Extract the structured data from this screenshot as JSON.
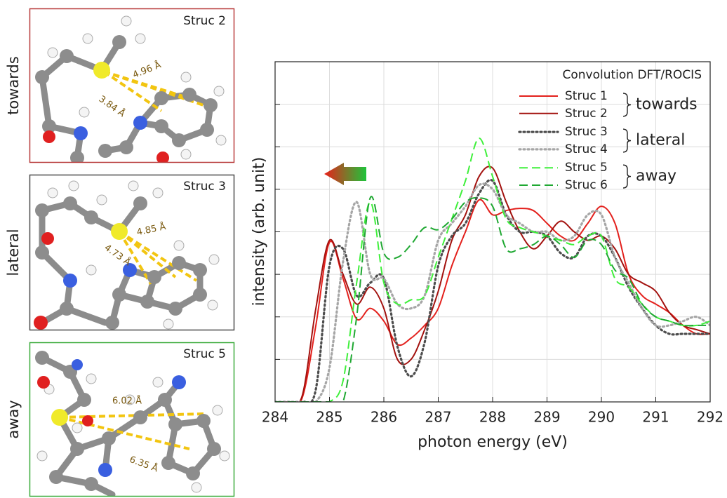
{
  "panels": [
    {
      "side_label": "towards",
      "title": "Struc 2",
      "distances": [
        "4.96 Å",
        "3.84 Å"
      ]
    },
    {
      "side_label": "lateral",
      "title": "Struc 3",
      "distances": [
        "4.85 Å",
        "4.73 Å"
      ]
    },
    {
      "side_label": "away",
      "title": "Struc 5",
      "distances": [
        "6.02 Å",
        "6.35 Å"
      ]
    }
  ],
  "chart_data": {
    "type": "line",
    "xlabel": "photon energy (eV)",
    "ylabel": "intensity (arb. unit)",
    "legend_title": "Convolution DFT/ROCIS",
    "legend_groups": [
      "towards",
      "lateral",
      "away"
    ],
    "legend_position": "upper right",
    "x": [
      284,
      284.25,
      284.5,
      284.75,
      285,
      285.25,
      285.5,
      285.75,
      286,
      286.25,
      286.5,
      286.75,
      287,
      287.25,
      287.5,
      287.75,
      288,
      288.25,
      288.5,
      288.75,
      289,
      289.25,
      289.5,
      289.75,
      290,
      290.25,
      290.5,
      290.75,
      291,
      291.25,
      291.5,
      291.75,
      292
    ],
    "series": [
      {
        "name": "Struc 1",
        "color": "#e3201c",
        "dash": "solid",
        "values": [
          0,
          0,
          0.1,
          1.8,
          3.75,
          2.9,
          1.95,
          2.2,
          1.9,
          1.35,
          1.5,
          1.8,
          2.2,
          3.2,
          4.0,
          4.75,
          4.4,
          4.5,
          4.55,
          4.5,
          4.2,
          3.9,
          3.8,
          4.2,
          4.6,
          4.2,
          3.0,
          2.5,
          2.3,
          2.1,
          1.8,
          1.6,
          1.6
        ]
      },
      {
        "name": "Struc 2",
        "color": "#a3120f",
        "dash": "solid",
        "values": [
          0,
          0,
          0.15,
          2.2,
          3.8,
          3.0,
          2.3,
          2.7,
          2.2,
          1.0,
          1.0,
          1.7,
          2.6,
          3.8,
          4.4,
          5.3,
          5.5,
          4.7,
          4.0,
          3.6,
          3.9,
          4.25,
          4.0,
          3.8,
          3.9,
          3.6,
          3.0,
          2.8,
          2.6,
          2.1,
          1.8,
          1.7,
          1.6
        ]
      },
      {
        "name": "Struc 3",
        "color": "#4d4d4d",
        "dash": "dotted",
        "values": [
          0,
          0,
          0,
          0.3,
          3.2,
          3.6,
          2.5,
          2.8,
          2.9,
          1.3,
          0.6,
          1.4,
          3.2,
          3.9,
          4.2,
          4.9,
          5.2,
          4.4,
          4.0,
          4.0,
          3.9,
          3.5,
          3.4,
          3.9,
          3.9,
          3.4,
          2.7,
          2.2,
          1.8,
          1.6,
          1.6,
          1.6,
          1.6
        ]
      },
      {
        "name": "Struc 4",
        "color": "#a6a6a6",
        "dash": "dotted",
        "values": [
          0,
          0,
          0,
          0,
          0.8,
          3.3,
          4.7,
          3.0,
          2.9,
          2.3,
          2.2,
          2.5,
          3.8,
          4.2,
          4.6,
          5.1,
          5.0,
          4.4,
          4.2,
          4.0,
          4.0,
          3.8,
          3.9,
          4.4,
          4.4,
          3.4,
          2.8,
          2.2,
          1.8,
          1.8,
          1.9,
          2.0,
          1.8
        ]
      },
      {
        "name": "Struc 5",
        "color": "#3ef03a",
        "dash": "dashed",
        "values": [
          0,
          0,
          0,
          0,
          0,
          0.5,
          2.8,
          4.7,
          2.8,
          2.3,
          2.4,
          2.5,
          3.4,
          4.3,
          5.2,
          6.2,
          5.3,
          4.3,
          4.1,
          4.0,
          3.9,
          3.8,
          3.7,
          3.9,
          3.9,
          2.9,
          2.7,
          2.3,
          2.0,
          1.9,
          1.8,
          1.8,
          1.9
        ]
      },
      {
        "name": "Struc 6",
        "color": "#1fa832",
        "dash": "dashed",
        "values": [
          0,
          0,
          0,
          0,
          0,
          0,
          2.0,
          4.8,
          3.5,
          3.4,
          3.7,
          4.1,
          4.05,
          4.3,
          4.7,
          4.8,
          4.6,
          3.6,
          3.6,
          3.7,
          3.9,
          3.7,
          3.4,
          3.8,
          3.7,
          3.1,
          2.9,
          2.3,
          2.0,
          1.9,
          1.8,
          1.8,
          1.8
        ]
      }
    ],
    "xlim": [
      284,
      292
    ],
    "xticks": [
      284,
      285,
      286,
      287,
      288,
      289,
      290,
      291,
      292
    ],
    "ylim": [
      0,
      8
    ],
    "yticks": [
      0,
      1,
      2,
      3,
      4,
      5,
      6,
      7,
      8
    ],
    "show_ytick_labels": false,
    "grid": true
  }
}
